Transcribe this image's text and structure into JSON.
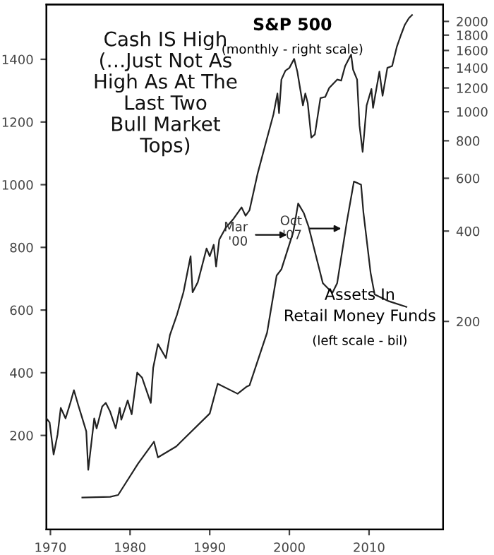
{
  "chart_data": {
    "type": "line",
    "title": "Cash IS High\n(…Just Not As\nHigh As At The\nLast Two\nBull Market\nTops)",
    "log": "y2",
    "grid": false,
    "legend": false,
    "marker": "none",
    "line_style": "solid",
    "xlim": [
      1969.5,
      2019.3
    ],
    "xticks": [
      1970,
      1980,
      1990,
      2000,
      2010
    ],
    "ylim": [
      -100,
      1575
    ],
    "yticks": [
      200,
      400,
      600,
      800,
      1000,
      1200,
      1400
    ],
    "y2lim": [
      40.5,
      2278
    ],
    "y2ticks": [
      200,
      400,
      600,
      800,
      1000,
      1200,
      1400,
      1600,
      1800,
      2000
    ],
    "series": [
      {
        "name": "S&P 500",
        "color": "#222222",
        "axis": "y2",
        "x": [
          1969.5,
          1969.9,
          1970.4,
          1970.9,
          1971.3,
          1971.9,
          1972.5,
          1972.95,
          1973.5,
          1973.9,
          1974.5,
          1974.75,
          1975.0,
          1975.5,
          1975.8,
          1976.5,
          1976.95,
          1977.5,
          1978.2,
          1978.7,
          1978.9,
          1979.7,
          1980.2,
          1980.9,
          1981.5,
          1982.6,
          1982.9,
          1983.5,
          1984.5,
          1985.0,
          1985.9,
          1986.7,
          1987.6,
          1987.85,
          1988.5,
          1989.6,
          1990.0,
          1990.5,
          1990.8,
          1991.2,
          1992.0,
          1993.0,
          1994.0,
          1994.5,
          1995.0,
          1996.0,
          1997.0,
          1998.0,
          1998.5,
          1998.7,
          1999.0,
          1999.5,
          2000.0,
          2000.6,
          2001.0,
          2001.7,
          2002.0,
          2002.3,
          2002.75,
          2003.2,
          2003.9,
          2004.5,
          2005.0,
          2006.0,
          2006.5,
          2007.0,
          2007.75,
          2008.0,
          2008.5,
          2008.8,
          2009.2,
          2009.7,
          2010.3,
          2010.5,
          2011.3,
          2011.7,
          2012.3,
          2012.9,
          2013.5,
          2014.0,
          2014.5,
          2015.0,
          2015.4
        ],
        "values": [
          95,
          92,
          72,
          84,
          103,
          95,
          107,
          118,
          105,
          97,
          86,
          64,
          73,
          95,
          88,
          104,
          107,
          100,
          88,
          103,
          94,
          109,
          98,
          135,
          130,
          107,
          140,
          168,
          151,
          180,
          211,
          250,
          330,
          250,
          270,
          350,
          330,
          360,
          305,
          375,
          410,
          440,
          480,
          450,
          470,
          620,
          780,
          980,
          1150,
          990,
          1280,
          1370,
          1400,
          1500,
          1360,
          1050,
          1150,
          1070,
          820,
          840,
          1110,
          1120,
          1200,
          1280,
          1270,
          1420,
          1550,
          1380,
          1280,
          900,
          735,
          1050,
          1190,
          1030,
          1360,
          1130,
          1400,
          1420,
          1650,
          1800,
          1950,
          2050,
          2100
        ]
      },
      {
        "name": "Assets In Retail Money Funds",
        "color": "#222222",
        "x": [
          1974.0,
          1977.5,
          1978.5,
          1979.5,
          1981.0,
          1983.0,
          1983.5,
          1985.8,
          1990.0,
          1991.0,
          1993.5,
          1994.6,
          1995.0,
          1997.2,
          1998.4,
          1999.0,
          2000.5,
          2001.1,
          2001.8,
          2002.4,
          2004.2,
          2005.4,
          2006.0,
          2007.2,
          2008.1,
          2009.0,
          2009.3,
          2010.2,
          2010.7,
          2012.5,
          2014.7
        ],
        "values": [
          2,
          4,
          10,
          50,
          110,
          180,
          130,
          165,
          270,
          365,
          333,
          355,
          360,
          528,
          710,
          730,
          850,
          940,
          910,
          867,
          686,
          655,
          686,
          880,
          1010,
          1000,
          910,
          718,
          650,
          628,
          610
        ]
      }
    ],
    "annotations": [
      "(monthly - right scale)",
      "(left scale - bil)",
      {
        "text": "Mar\n'00",
        "x": 2000.2,
        "y": 840
      },
      {
        "text": "Oct\n'07",
        "x": 2007.0,
        "y": 860
      }
    ]
  }
}
